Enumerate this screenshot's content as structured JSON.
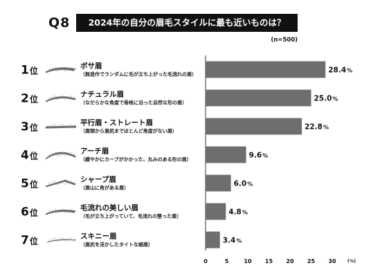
{
  "header": {
    "question_label": "Q8",
    "title": "2024年の自分の眉毛スタイルに最も近いものは？",
    "sample_size": "(n=500)"
  },
  "chart_data": {
    "type": "bar",
    "orientation": "horizontal",
    "title": "2024年の自分の眉毛スタイルに最も近いものは？",
    "ranks": [
      "1",
      "2",
      "3",
      "4",
      "5",
      "6",
      "7"
    ],
    "rank_suffix": "位",
    "categories": [
      "ボサ眉",
      "ナチュラル眉",
      "平行眉・ストレート眉",
      "アーチ眉",
      "シャープ眉",
      "毛流れの美しい眉",
      "スキニー眉"
    ],
    "descriptions": [
      "（無造作でランダムに毛が立ち上がった毛流れの眉）",
      "（なだらかな角度で骨格に沿った自然な形の眉）",
      "（眉頭から眉尻までほとんど角度がない眉）",
      "（緩やかにカーブがかかった、丸みのある形の眉）",
      "（眉山に角がある眉）",
      "（毛が立ち上がっていて、毛流れの整った眉）",
      "（眉尻を活かしたタイトな細眉）"
    ],
    "values": [
      28.4,
      25.0,
      22.8,
      9.6,
      6.0,
      4.8,
      3.4
    ],
    "value_labels": [
      "28.4",
      "25.0",
      "22.8",
      "9.6",
      "6.0",
      "4.8",
      "3.4"
    ],
    "value_unit": "%",
    "xlim": [
      0,
      30
    ],
    "x_ticks": [
      "0",
      "5",
      "10",
      "15",
      "20",
      "25",
      "30"
    ],
    "x_unit": "(%)",
    "bar_color": "#6e6e6e",
    "grid": false
  }
}
